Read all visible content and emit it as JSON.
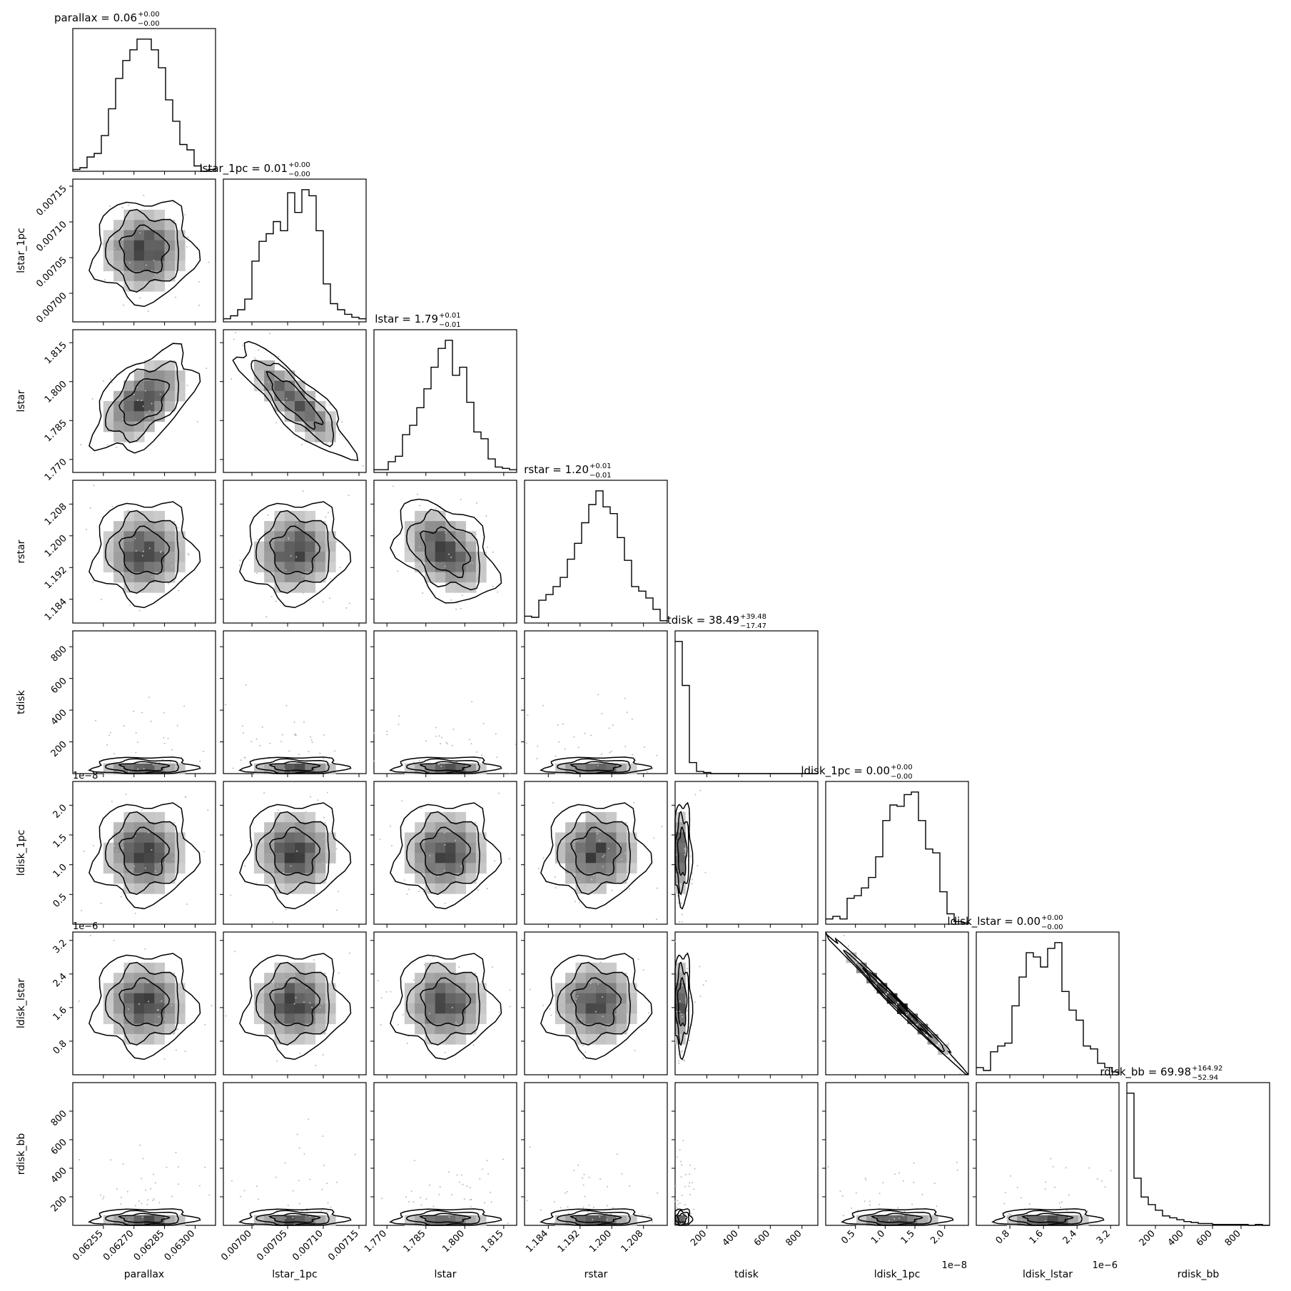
{
  "chart_data": {
    "type": "corner",
    "params": [
      {
        "name": "parallax",
        "title_label": "parallax = 0.06",
        "sup": "+0.00",
        "sub": "−0.00",
        "ticks": [
          0.06255,
          0.0627,
          0.06285,
          0.063
        ],
        "tick_labels": [
          "0.06255",
          "0.06270",
          "0.06285",
          "0.06300"
        ],
        "range": [
          0.0624,
          0.0631
        ],
        "offset_label": "",
        "hist": [
          1,
          2,
          8,
          10,
          20,
          35,
          52,
          62,
          68,
          74,
          74,
          68,
          58,
          40,
          28,
          15,
          12,
          3,
          0,
          1
        ]
      },
      {
        "name": "lstar_1pc",
        "title_label": "lstar_1pc = 0.01",
        "sup": "+0.00",
        "sub": "−0.00",
        "ticks": [
          0.007,
          0.00705,
          0.0071,
          0.00715
        ],
        "tick_labels": [
          "0.00700",
          "0.00705",
          "0.00710",
          "0.00715"
        ],
        "range": [
          0.00696,
          0.00716
        ],
        "offset_label": "",
        "hist": [
          2,
          4,
          8,
          15,
          40,
          53,
          58,
          66,
          60,
          85,
          72,
          87,
          83,
          60,
          25,
          12,
          8,
          5,
          3,
          2
        ]
      },
      {
        "name": "lstar",
        "title_label": "lstar = 1.79",
        "sup": "+0.01",
        "sub": "−0.01",
        "ticks": [
          1.77,
          1.785,
          1.8,
          1.815
        ],
        "tick_labels": [
          "1.770",
          "1.785",
          "1.800",
          "1.815"
        ],
        "range": [
          1.765,
          1.82
        ],
        "offset_label": "",
        "hist": [
          2,
          2,
          8,
          12,
          28,
          35,
          48,
          62,
          78,
          92,
          98,
          72,
          78,
          52,
          30,
          25,
          10,
          4,
          3,
          2
        ]
      },
      {
        "name": "rstar",
        "title_label": "rstar = 1.20",
        "sup": "+0.01",
        "sub": "−0.01",
        "ticks": [
          1.184,
          1.192,
          1.2,
          1.208
        ],
        "tick_labels": [
          "1.184",
          "1.192",
          "1.200",
          "1.208"
        ],
        "range": [
          1.178,
          1.214
        ],
        "offset_label": "",
        "hist": [
          6,
          5,
          20,
          25,
          32,
          40,
          56,
          70,
          88,
          104,
          116,
          102,
          96,
          75,
          55,
          32,
          28,
          22,
          12,
          2
        ]
      },
      {
        "name": "tdisk",
        "title_label": "tdisk = 38.49",
        "sup": "+39.48",
        "sub": "−17.47",
        "ticks": [
          200,
          400,
          600,
          800
        ],
        "tick_labels": [
          "200",
          "400",
          "600",
          "800"
        ],
        "range": [
          0,
          900
        ],
        "offset_label": "",
        "hist": [
          120,
          80,
          10,
          2,
          1,
          0,
          0,
          0,
          0,
          0,
          0,
          0,
          0,
          0,
          0,
          0,
          0,
          0,
          0,
          0
        ]
      },
      {
        "name": "ldisk_1pc",
        "title_label": "ldisk_1pc = 0.00",
        "sup": "+0.00",
        "sub": "−0.00",
        "ticks": [
          0.5,
          1.0,
          1.5,
          2.0
        ],
        "tick_labels": [
          "0.5",
          "1.0",
          "1.5",
          "2.0"
        ],
        "range": [
          0,
          2.4
        ],
        "offset_label": "1e−8",
        "hist": [
          4,
          6,
          4,
          20,
          22,
          28,
          36,
          52,
          80,
          92,
          91,
          100,
          102,
          80,
          58,
          55,
          25,
          8,
          2,
          1
        ]
      },
      {
        "name": "ldisk_lstar",
        "title_label": "ldisk_lstar = 0.00",
        "sup": "+0.00",
        "sub": "−0.00",
        "ticks": [
          0.8,
          1.6,
          2.4,
          3.2
        ],
        "tick_labels": [
          "0.8",
          "1.6",
          "2.4",
          "3.2"
        ],
        "range": [
          0,
          3.4
        ],
        "offset_label": "1e−6",
        "hist": [
          5,
          3,
          16,
          20,
          22,
          48,
          68,
          85,
          82,
          75,
          88,
          92,
          58,
          45,
          38,
          20,
          18,
          8,
          5,
          2
        ]
      },
      {
        "name": "rdisk_bb",
        "title_label": "rdisk_bb = 69.98",
        "sup": "+164.92",
        "sub": "−52.94",
        "ticks": [
          200,
          400,
          600,
          800
        ],
        "tick_labels": [
          "200",
          "400",
          "600",
          "800"
        ],
        "range": [
          0,
          1000
        ],
        "offset_label": "",
        "hist": [
          140,
          50,
          30,
          22,
          16,
          10,
          8,
          6,
          4,
          3,
          2,
          2,
          1,
          1,
          1,
          1,
          1,
          0,
          1,
          0
        ]
      }
    ]
  }
}
